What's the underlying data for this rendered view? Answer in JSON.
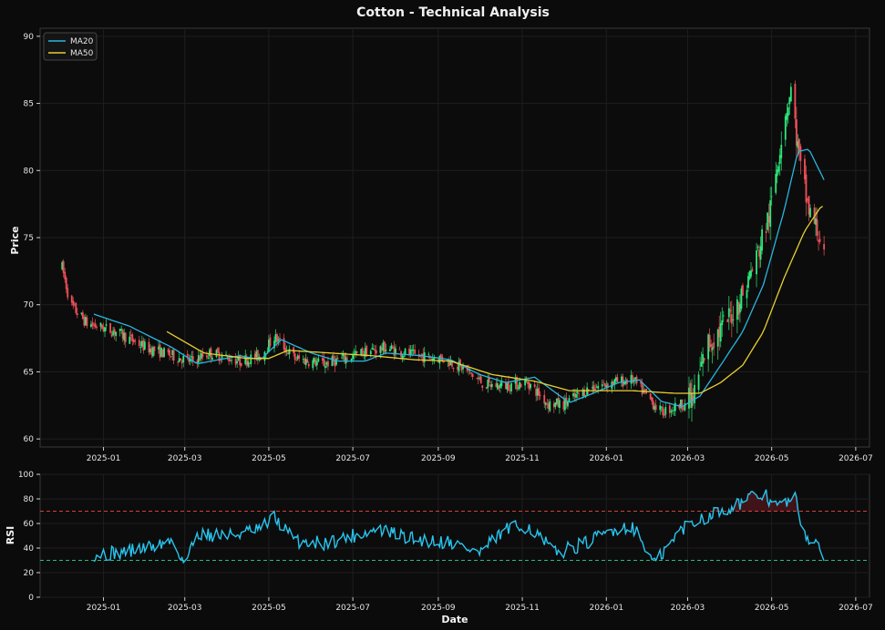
{
  "chart_data": [
    {
      "type": "candlestick",
      "title": "Cotton - Technical Analysis",
      "xlabel": "",
      "ylabel": "Price",
      "ylim": [
        59.4,
        90.6
      ],
      "xlim": [
        "2024-11-16",
        "2026-07-11"
      ],
      "yticks": [
        60,
        65,
        70,
        75,
        80,
        85,
        90
      ],
      "xticks": [
        "2025-01-01",
        "2025-03-01",
        "2025-05-01",
        "2025-07-01",
        "2025-09-01",
        "2025-11-01",
        "2026-01-01",
        "2026-03-01",
        "2026-05-01",
        "2026-07-01"
      ],
      "xtick_labels": [
        "2025-01",
        "2025-03",
        "2025-05",
        "2025-07",
        "2025-09",
        "2025-11",
        "2026-01",
        "2026-03",
        "2026-05",
        "2026-07"
      ],
      "grid": true,
      "legend": {
        "position": "top-left",
        "entries": [
          "MA20",
          "MA50"
        ]
      },
      "colors": {
        "up": "#2ee87a",
        "down": "#f0505a",
        "ma20": "#29b6e0",
        "ma50": "#e8d030"
      },
      "price_anchors": [
        [
          "2024-12-02",
          72.8
        ],
        [
          "2024-12-08",
          70.0
        ],
        [
          "2024-12-20",
          68.6
        ],
        [
          "2025-01-10",
          68.0
        ],
        [
          "2025-02-01",
          66.8
        ],
        [
          "2025-02-20",
          66.2
        ],
        [
          "2025-03-05",
          65.8
        ],
        [
          "2025-03-20",
          66.4
        ],
        [
          "2025-04-10",
          65.8
        ],
        [
          "2025-04-25",
          66.2
        ],
        [
          "2025-05-05",
          67.6
        ],
        [
          "2025-05-20",
          66.0
        ],
        [
          "2025-06-10",
          65.6
        ],
        [
          "2025-06-25",
          66.0
        ],
        [
          "2025-07-10",
          66.5
        ],
        [
          "2025-07-25",
          66.8
        ],
        [
          "2025-08-15",
          66.2
        ],
        [
          "2025-09-05",
          66.0
        ],
        [
          "2025-09-20",
          65.2
        ],
        [
          "2025-10-05",
          64.0
        ],
        [
          "2025-10-20",
          64.0
        ],
        [
          "2025-11-05",
          64.2
        ],
        [
          "2025-11-20",
          62.6
        ],
        [
          "2025-12-01",
          62.6
        ],
        [
          "2025-12-20",
          63.8
        ],
        [
          "2026-01-05",
          64.2
        ],
        [
          "2026-01-20",
          64.4
        ],
        [
          "2026-02-01",
          63.0
        ],
        [
          "2026-02-10",
          62.0
        ],
        [
          "2026-02-25",
          62.6
        ],
        [
          "2026-03-05",
          63.0
        ],
        [
          "2026-03-15",
          67.0
        ],
        [
          "2026-03-28",
          68.5
        ],
        [
          "2026-04-10",
          70.8
        ],
        [
          "2026-04-20",
          73.5
        ],
        [
          "2026-04-30",
          77.0
        ],
        [
          "2026-05-10",
          84.0
        ],
        [
          "2026-05-15",
          86.0
        ],
        [
          "2026-05-22",
          80.0
        ],
        [
          "2026-05-28",
          77.0
        ],
        [
          "2026-06-05",
          75.0
        ],
        [
          "2026-06-08",
          73.4
        ]
      ],
      "ma20_points": [
        [
          "2024-12-25",
          69.3
        ],
        [
          "2025-01-20",
          68.4
        ],
        [
          "2025-02-20",
          66.8
        ],
        [
          "2025-03-10",
          65.6
        ],
        [
          "2025-04-10",
          66.2
        ],
        [
          "2025-04-25",
          65.9
        ],
        [
          "2025-05-10",
          67.4
        ],
        [
          "2025-06-01",
          66.4
        ],
        [
          "2025-06-20",
          65.8
        ],
        [
          "2025-07-10",
          65.8
        ],
        [
          "2025-07-25",
          66.4
        ],
        [
          "2025-08-20",
          66.2
        ],
        [
          "2025-09-10",
          65.9
        ],
        [
          "2025-10-01",
          64.8
        ],
        [
          "2025-10-20",
          64.2
        ],
        [
          "2025-11-10",
          64.6
        ],
        [
          "2025-12-05",
          62.7
        ],
        [
          "2025-12-20",
          63.3
        ],
        [
          "2026-01-10",
          64.2
        ],
        [
          "2026-01-25",
          64.4
        ],
        [
          "2026-02-10",
          62.8
        ],
        [
          "2026-02-25",
          62.4
        ],
        [
          "2026-03-10",
          63.2
        ],
        [
          "2026-03-25",
          65.5
        ],
        [
          "2026-04-10",
          68.0
        ],
        [
          "2026-04-25",
          71.5
        ],
        [
          "2026-05-10",
          77.0
        ],
        [
          "2026-05-20",
          81.4
        ],
        [
          "2026-05-28",
          81.6
        ],
        [
          "2026-06-08",
          79.3
        ]
      ],
      "ma50_points": [
        [
          "2025-02-16",
          68.0
        ],
        [
          "2025-03-15",
          66.4
        ],
        [
          "2025-04-15",
          66.0
        ],
        [
          "2025-05-01",
          66.0
        ],
        [
          "2025-05-15",
          66.6
        ],
        [
          "2025-06-15",
          66.4
        ],
        [
          "2025-07-15",
          66.2
        ],
        [
          "2025-08-15",
          65.9
        ],
        [
          "2025-09-10",
          65.8
        ],
        [
          "2025-10-10",
          64.8
        ],
        [
          "2025-11-10",
          64.3
        ],
        [
          "2025-12-05",
          63.6
        ],
        [
          "2025-12-25",
          63.6
        ],
        [
          "2026-01-20",
          63.6
        ],
        [
          "2026-02-20",
          63.4
        ],
        [
          "2026-03-10",
          63.4
        ],
        [
          "2026-03-25",
          64.2
        ],
        [
          "2026-04-10",
          65.5
        ],
        [
          "2026-04-25",
          68.0
        ],
        [
          "2026-05-10",
          72.0
        ],
        [
          "2026-05-25",
          75.5
        ],
        [
          "2026-06-05",
          77.2
        ],
        [
          "2026-06-08",
          77.4
        ]
      ]
    },
    {
      "type": "line",
      "title": "",
      "xlabel": "Date",
      "ylabel": "RSI",
      "ylim": [
        0,
        100
      ],
      "yticks": [
        0,
        20,
        40,
        60,
        80,
        100
      ],
      "xtick_labels": [
        "2025-01",
        "2025-03",
        "2025-05",
        "2025-07",
        "2025-09",
        "2025-11",
        "2026-01",
        "2026-03",
        "2026-05",
        "2026-07"
      ],
      "reference_lines": [
        {
          "y": 70,
          "color": "#d04040"
        },
        {
          "y": 30,
          "color": "#20c080"
        }
      ],
      "color": "#29c4ee",
      "rsi_anchors": [
        [
          "2024-12-25",
          35
        ],
        [
          "2025-01-10",
          36
        ],
        [
          "2025-02-01",
          40
        ],
        [
          "2025-02-20",
          46
        ],
        [
          "2025-03-01",
          27
        ],
        [
          "2025-03-10",
          52
        ],
        [
          "2025-04-01",
          50
        ],
        [
          "2025-04-25",
          55
        ],
        [
          "2025-05-05",
          65
        ],
        [
          "2025-05-20",
          46
        ],
        [
          "2025-06-10",
          44
        ],
        [
          "2025-07-01",
          50
        ],
        [
          "2025-07-20",
          55
        ],
        [
          "2025-08-15",
          47
        ],
        [
          "2025-09-10",
          45
        ],
        [
          "2025-10-01",
          36
        ],
        [
          "2025-10-20",
          55
        ],
        [
          "2025-11-05",
          58
        ],
        [
          "2025-11-25",
          36
        ],
        [
          "2025-12-20",
          45
        ],
        [
          "2026-01-05",
          55
        ],
        [
          "2026-01-20",
          58
        ],
        [
          "2026-02-05",
          27
        ],
        [
          "2026-02-25",
          56
        ],
        [
          "2026-03-10",
          64
        ],
        [
          "2026-03-25",
          70
        ],
        [
          "2026-04-10",
          78
        ],
        [
          "2026-04-25",
          84
        ],
        [
          "2026-05-05",
          74
        ],
        [
          "2026-05-18",
          80
        ],
        [
          "2026-05-25",
          52
        ],
        [
          "2026-06-01",
          42
        ],
        [
          "2026-06-08",
          35
        ]
      ]
    }
  ]
}
